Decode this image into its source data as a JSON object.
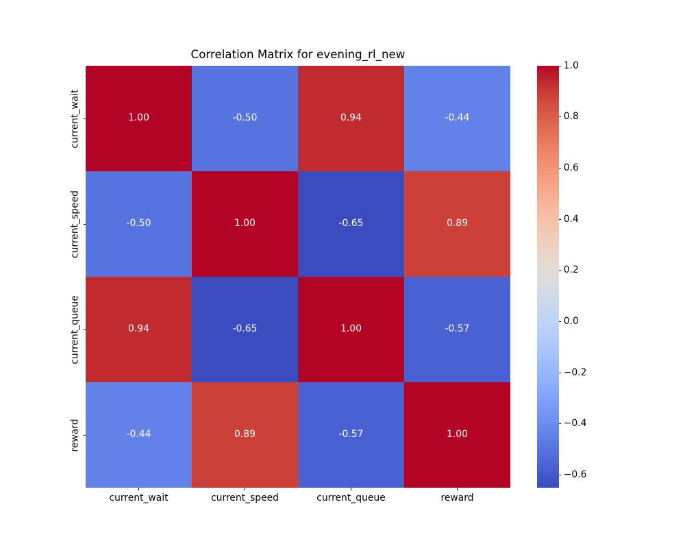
{
  "figure": {
    "background_color": "#ffffff",
    "text_color": "#000000"
  },
  "chart_data": {
    "type": "heatmap",
    "title": "Correlation Matrix for evening_rl_new",
    "categories": [
      "current_wait",
      "current_speed",
      "current_queue",
      "reward"
    ],
    "matrix": [
      [
        1.0,
        -0.5,
        0.94,
        -0.44
      ],
      [
        -0.5,
        1.0,
        -0.65,
        0.89
      ],
      [
        0.94,
        -0.65,
        1.0,
        -0.57
      ],
      [
        -0.44,
        0.89,
        -0.57,
        1.0
      ]
    ],
    "annotations": [
      [
        "1.00",
        "-0.50",
        "0.94",
        "-0.44"
      ],
      [
        "-0.50",
        "1.00",
        "-0.65",
        "0.89"
      ],
      [
        "0.94",
        "-0.65",
        "1.00",
        "-0.57"
      ],
      [
        "-0.44",
        "0.89",
        "-0.57",
        "1.00"
      ]
    ],
    "cell_colors": [
      [
        "#b40426",
        "#5673e0",
        "#c12b30",
        "#6282ea"
      ],
      [
        "#5673e0",
        "#b40426",
        "#3b4cc0",
        "#cc403a"
      ],
      [
        "#c12b30",
        "#3b4cc0",
        "#b40426",
        "#4961d2"
      ],
      [
        "#6282ea",
        "#cc403a",
        "#4961d2",
        "#b40426"
      ]
    ],
    "annotation_color": "#ffffff",
    "colormap": "coolwarm",
    "vmin": -0.65,
    "vmax": 1.0,
    "grid": false,
    "legend_position": "right-colorbar",
    "colorbar": {
      "ticks": [
        {
          "label": "1.0",
          "value": 1.0
        },
        {
          "label": "0.8",
          "value": 0.8
        },
        {
          "label": "0.6",
          "value": 0.6
        },
        {
          "label": "0.4",
          "value": 0.4
        },
        {
          "label": "0.2",
          "value": 0.2
        },
        {
          "label": "0.0",
          "value": 0.0
        },
        {
          "label": "−0.2",
          "value": -0.2
        },
        {
          "label": "−0.4",
          "value": -0.4
        },
        {
          "label": "−0.6",
          "value": -0.6
        }
      ],
      "gradient_stops_bottom_to_top": [
        "#3b4cc0",
        "#445acc",
        "#4e68d8",
        "#5875e1",
        "#6282ea",
        "#6c8ff1",
        "#779af7",
        "#82a6fb",
        "#8db0fe",
        "#98b9ff",
        "#a3c2fe",
        "#aec9fc",
        "#b9d0f9",
        "#c3d5f4",
        "#ccd9ed",
        "#d5dbe5",
        "#dddcdc",
        "#e5d8d1",
        "#ecd3c5",
        "#f1ccb8",
        "#f5c4ac",
        "#f7ba9f",
        "#f7b093",
        "#f6a586",
        "#f4987a",
        "#f08b6e",
        "#eb7d62",
        "#e46e56",
        "#dd5f4b",
        "#d44e41",
        "#ca3b37",
        "#be242e",
        "#b40426"
      ]
    }
  }
}
